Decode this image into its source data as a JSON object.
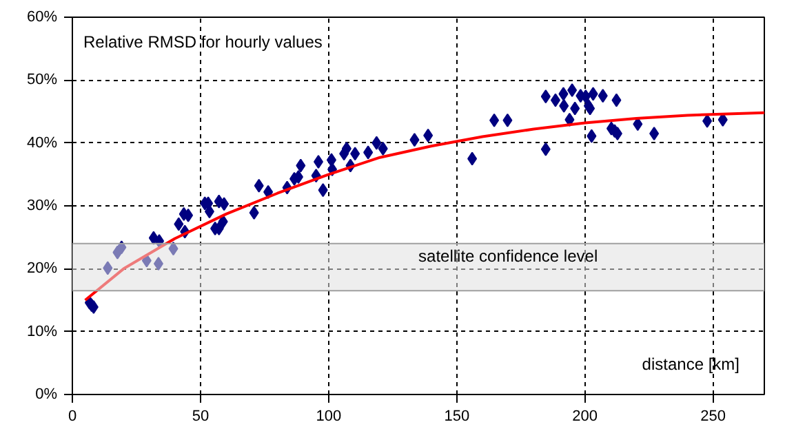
{
  "chart_data": {
    "type": "scatter",
    "title": "Relative RMSD for hourly values",
    "xlabel": "distance [km]",
    "xlim": [
      0,
      270
    ],
    "ylim": [
      0,
      60
    ],
    "xticks": [
      0,
      50,
      100,
      150,
      200,
      250
    ],
    "yticks": [
      {
        "value": 0,
        "label": "0%"
      },
      {
        "value": 10,
        "label": "10%"
      },
      {
        "value": 20,
        "label": "20%"
      },
      {
        "value": 30,
        "label": "30%"
      },
      {
        "value": 40,
        "label": "40%"
      },
      {
        "value": 50,
        "label": "50%"
      },
      {
        "value": 60,
        "label": "60%"
      }
    ],
    "grid": true,
    "marker": "diamond",
    "series": [
      {
        "color": "#000080",
        "x": [
          6.7,
          7.5,
          8.3,
          13.8,
          17.6,
          19.2,
          29.0,
          33.6,
          39.4,
          31.7,
          33.9,
          41.5,
          43.5,
          45.2,
          43.9,
          51.7,
          53.0,
          53.5,
          55.7,
          57.2,
          58.8,
          57.2,
          59.2,
          70.9,
          72.8,
          76.4,
          83.8,
          86.6,
          88.2,
          89.1,
          95.1,
          96.0,
          97.8,
          101.1,
          101.4,
          106.0,
          107.0,
          108.5,
          110.3,
          115.4,
          118.7,
          121.2,
          133.5,
          138.8,
          156.0,
          164.6,
          169.8,
          184.7,
          184.7,
          188.5,
          191.6,
          191.8,
          194.0,
          195.0,
          196.1,
          198.3,
          200.3,
          201.4,
          202.0,
          203.2,
          202.6,
          207.0,
          212.3,
          210.3,
          211.6,
          212.7,
          220.6,
          227.0,
          247.7,
          253.8
        ],
        "values": [
          14.6,
          14.2,
          13.9,
          20.1,
          22.6,
          23.4,
          21.3,
          20.8,
          23.2,
          24.9,
          24.4,
          27.1,
          28.7,
          28.5,
          25.9,
          30.4,
          30.4,
          29.1,
          26.4,
          26.4,
          27.5,
          30.7,
          30.3,
          28.9,
          33.2,
          32.2,
          32.9,
          34.3,
          34.6,
          36.4,
          34.8,
          37.0,
          32.5,
          37.3,
          35.8,
          38.3,
          39.1,
          36.4,
          38.3,
          38.5,
          40.0,
          39.1,
          40.5,
          41.2,
          37.5,
          43.6,
          43.6,
          47.4,
          39.0,
          46.8,
          47.8,
          45.9,
          43.7,
          48.4,
          45.5,
          47.5,
          47.4,
          45.9,
          45.5,
          47.8,
          41.1,
          47.5,
          46.8,
          42.3,
          41.9,
          41.5,
          43.0,
          41.5,
          43.5,
          43.7
        ]
      },
      {
        "type": "line",
        "marker": "none",
        "color": "#ff0000",
        "x": [
          5,
          20,
          40,
          60,
          80,
          100,
          120,
          140,
          160,
          180,
          200,
          220,
          240,
          270
        ],
        "values": [
          15.0,
          20.0,
          24.8,
          28.7,
          32.0,
          35.0,
          37.7,
          39.5,
          41.0,
          42.2,
          43.2,
          43.9,
          44.4,
          44.8
        ]
      }
    ],
    "bands": [
      {
        "axis": "y",
        "from": 16.5,
        "to": 24,
        "label": "satellite confidence level",
        "color": "#e0e0e0"
      }
    ]
  }
}
